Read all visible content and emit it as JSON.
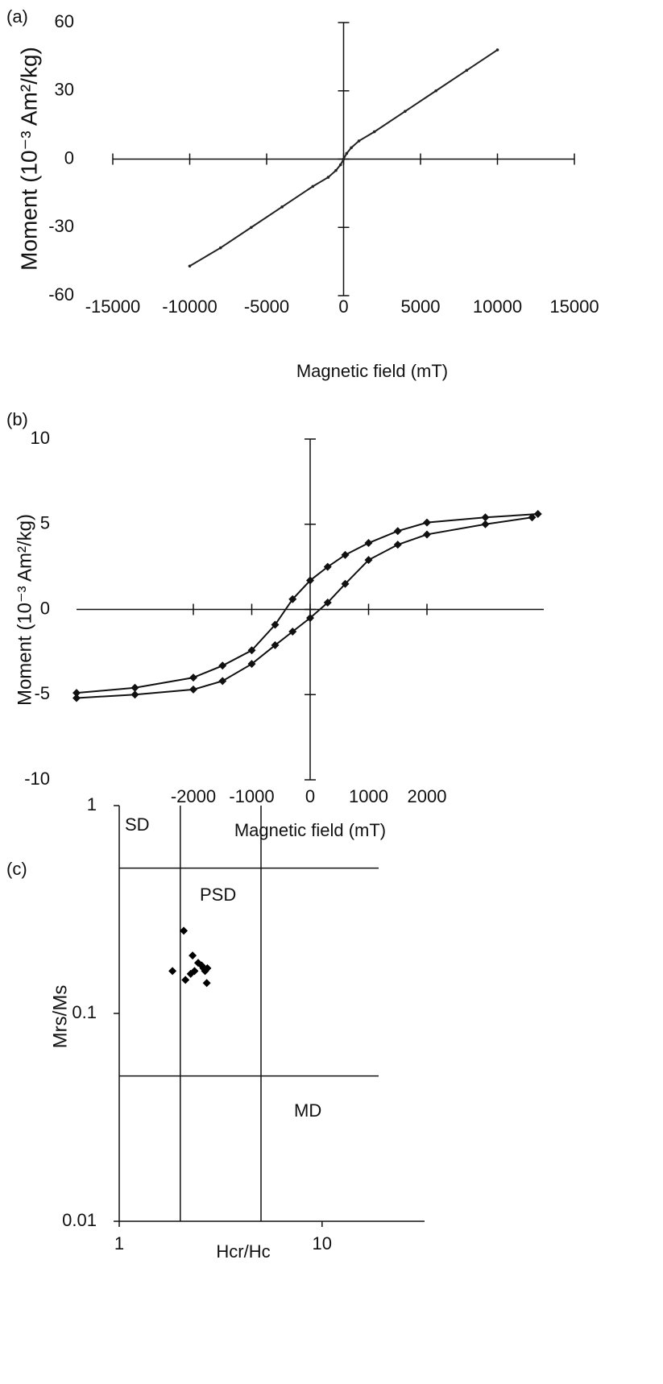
{
  "chart_data": [
    {
      "type": "line",
      "panel": "(a)",
      "x_label": "Magnetic field (mT)",
      "y_label": "Moment (10⁻³ Am²/kg)",
      "axes": "cross",
      "marker": "dot",
      "xlim": [
        -15000,
        15000
      ],
      "xticks": [
        -15000,
        -10000,
        -5000,
        0,
        5000,
        10000,
        15000
      ],
      "ylim": [
        -60,
        60
      ],
      "yticks": [
        -60,
        -30,
        0,
        30,
        60
      ],
      "series": [
        {
          "color": "#222222",
          "x": [
            -10000,
            -8000,
            -6000,
            -4000,
            -2000,
            -1000,
            -500,
            -200,
            0,
            200,
            500,
            1000,
            2000,
            4000,
            6000,
            8000,
            10000
          ],
          "values": [
            -47,
            -39,
            -30,
            -21,
            -12,
            -8,
            -5,
            -2.5,
            0,
            2.5,
            5,
            8,
            12,
            21,
            30,
            39,
            48
          ]
        }
      ]
    },
    {
      "type": "line",
      "panel": "(b)",
      "x_label": "Magnetic field (mT)",
      "y_label": "Moment (10⁻³ Am²/kg)",
      "axes": "cross",
      "marker": "diamond",
      "xlim": [
        -4000,
        4000
      ],
      "xticks": [
        -2000,
        -1000,
        0,
        1000,
        2000
      ],
      "ylim": [
        -10,
        10
      ],
      "yticks": [
        -10,
        -5,
        0,
        5,
        10
      ],
      "series": [
        {
          "color": "#111111",
          "x": [
            3900,
            3000,
            2000,
            1500,
            1000,
            600,
            300,
            0,
            -300,
            -600,
            -1000,
            -1500,
            -2000,
            -3000,
            -4000
          ],
          "values": [
            5.6,
            5.4,
            5.1,
            4.6,
            3.9,
            3.2,
            2.5,
            1.7,
            0.6,
            -0.9,
            -2.4,
            -3.3,
            -4.0,
            -4.6,
            -4.9
          ]
        },
        {
          "color": "#111111",
          "x": [
            -4000,
            -3000,
            -2000,
            -1500,
            -1000,
            -600,
            -300,
            0,
            300,
            600,
            1000,
            1500,
            2000,
            3000,
            3800
          ],
          "values": [
            -5.2,
            -5.0,
            -4.7,
            -4.2,
            -3.2,
            -2.1,
            -1.3,
            -0.5,
            0.4,
            1.5,
            2.9,
            3.8,
            4.4,
            5.0,
            5.4
          ]
        }
      ]
    },
    {
      "type": "scatter",
      "panel": "(c)",
      "x_label": "Hcr/Hc",
      "y_label": "Mrs/Ms",
      "axes": "box",
      "marker": "diamond",
      "xlog": true,
      "ylog": true,
      "xlim": [
        1,
        32
      ],
      "xticks": [
        1,
        10
      ],
      "ylim": [
        0.01,
        1
      ],
      "yticks": [
        0.01,
        0.1,
        1
      ],
      "vlines": [
        2,
        5
      ],
      "hlines": [
        0.5,
        0.05
      ],
      "annotations": [
        "SD",
        "PSD",
        "MD"
      ],
      "series": [
        {
          "color": "#000000",
          "x": [
            2.08,
            1.83,
            2.3,
            2.45,
            2.12,
            2.35,
            2.25,
            2.55,
            2.65,
            2.7,
            2.72,
            2.6
          ],
          "values": [
            0.25,
            0.16,
            0.19,
            0.175,
            0.145,
            0.16,
            0.155,
            0.17,
            0.16,
            0.14,
            0.165,
            0.165
          ]
        }
      ]
    }
  ]
}
